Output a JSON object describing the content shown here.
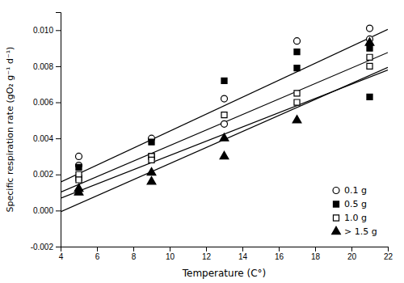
{
  "chart_data": {
    "type": "scatter",
    "xlabel": "Temperature (C°)",
    "ylabel": "Specific respiration rate (gO₂ g⁻¹ d⁻¹)",
    "xlim": [
      4,
      22
    ],
    "ylim": [
      -0.002,
      0.011
    ],
    "xticks": [
      4,
      6,
      8,
      10,
      12,
      14,
      16,
      18,
      20,
      22
    ],
    "yticks": [
      {
        "value": -0.002,
        "label": "-0.002"
      },
      {
        "value": 0,
        "label": "0.000"
      },
      {
        "value": 0.002,
        "label": "0.002"
      },
      {
        "value": 0.004,
        "label": "0.004"
      },
      {
        "value": 0.006,
        "label": "0.006"
      },
      {
        "value": 0.008,
        "label": "0.008"
      },
      {
        "value": 0.01,
        "label": "0.010"
      }
    ],
    "legend": "lower right",
    "series": [
      {
        "type": "line",
        "color": "black",
        "x": [
          4,
          22
        ],
        "values": [
          0.00158,
          0.01004
        ]
      },
      {
        "type": "line",
        "color": "black",
        "x": [
          4,
          22
        ],
        "values": [
          0.00102,
          0.00876
        ]
      },
      {
        "type": "line",
        "color": "black",
        "x": [
          4,
          22
        ],
        "values": [
          0.00068,
          0.00779
        ]
      },
      {
        "type": "line",
        "color": "black",
        "x": [
          4,
          22
        ],
        "values": [
          -7e-05,
          0.00794
        ]
      },
      {
        "type": "scatter",
        "name": "0.1 g",
        "marker": "circle-open",
        "color": "black",
        "x": [
          5,
          5,
          9,
          13,
          13,
          17,
          21,
          21
        ],
        "values": [
          0.003,
          0.0025,
          0.004,
          0.0062,
          0.0048,
          0.0094,
          0.0101,
          0.0095
        ]
      },
      {
        "type": "scatter",
        "name": "0.5 g",
        "marker": "square",
        "color": "black",
        "x": [
          5,
          5,
          9,
          9,
          13,
          17,
          17,
          21,
          21
        ],
        "values": [
          0.0024,
          0.0018,
          0.0038,
          0.003,
          0.0072,
          0.0088,
          0.0079,
          0.009,
          0.0063
        ]
      },
      {
        "type": "scatter",
        "name": "1.0 g",
        "marker": "square-open",
        "color": "black",
        "x": [
          5,
          5,
          9,
          9,
          13,
          17,
          17,
          21,
          21
        ],
        "values": [
          0.002,
          0.0017,
          0.003,
          0.0028,
          0.0053,
          0.006,
          0.0065,
          0.0085,
          0.008
        ]
      },
      {
        "type": "scatter",
        "name": "> 1.5 g",
        "marker": "triangle",
        "color": "black",
        "x": [
          5,
          5,
          9,
          9,
          13,
          13,
          17,
          21
        ],
        "values": [
          0.001,
          0.0012,
          0.0021,
          0.0016,
          0.004,
          0.003,
          0.005,
          0.0093
        ]
      }
    ]
  }
}
